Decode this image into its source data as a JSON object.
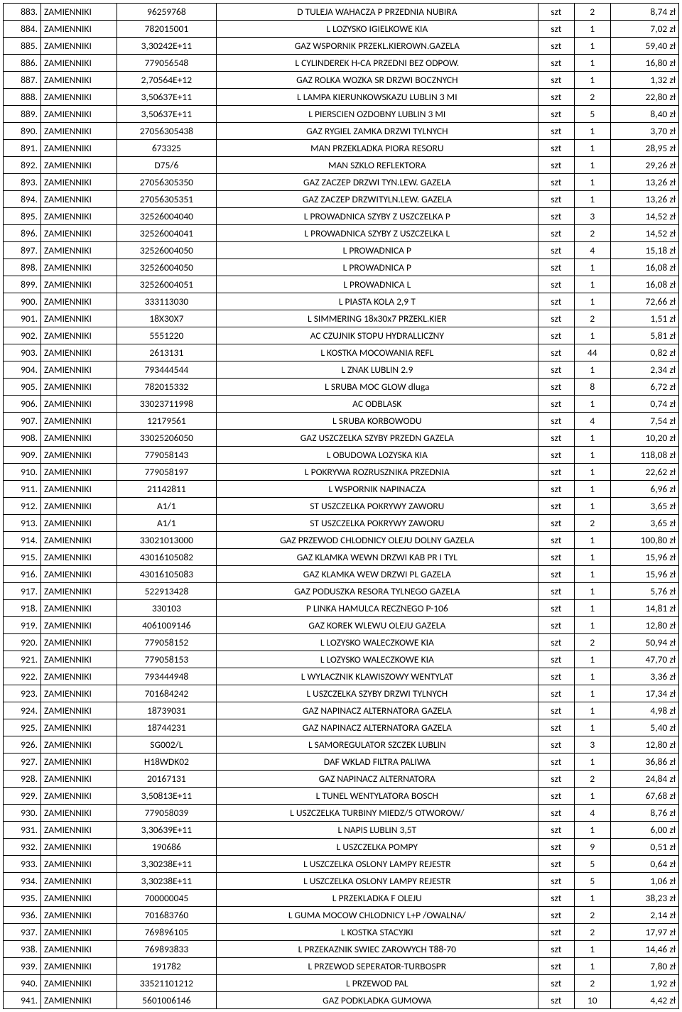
{
  "table": {
    "columns": [
      {
        "key": "lp",
        "class": "c0"
      },
      {
        "key": "cat",
        "class": "c1"
      },
      {
        "key": "code",
        "class": "c2"
      },
      {
        "key": "desc",
        "class": "c3"
      },
      {
        "key": "unit",
        "class": "c4"
      },
      {
        "key": "qty",
        "class": "c5"
      },
      {
        "key": "price",
        "class": "c6"
      }
    ],
    "rows": [
      [
        "883.",
        "ZAMIENNIKI",
        "96259768",
        "D TULEJA WAHACZA P PRZEDNIA NUBIRA",
        "szt",
        "2",
        "8,74 zł"
      ],
      [
        "884.",
        "ZAMIENNIKI",
        "782015001",
        "L LOZYSKO IGIELKOWE KIA",
        "szt",
        "1",
        "7,02 zł"
      ],
      [
        "885.",
        "ZAMIENNIKI",
        "3,30242E+11",
        "GAZ WSPORNIK PRZEKL.KIEROWN.GAZELA",
        "szt",
        "1",
        "59,40 zł"
      ],
      [
        "886.",
        "ZAMIENNIKI",
        "779056548",
        "L CYLINDEREK H-CA PRZEDNI BEZ ODPOW.",
        "szt",
        "1",
        "16,80 zł"
      ],
      [
        "887.",
        "ZAMIENNIKI",
        "2,70564E+12",
        "GAZ ROLKA WOZKA SR DRZWI BOCZNYCH",
        "szt",
        "1",
        "1,32 zł"
      ],
      [
        "888.",
        "ZAMIENNIKI",
        "3,50637E+11",
        "L LAMPA KIERUNKOWSKAZU LUBLIN 3 MI",
        "szt",
        "2",
        "22,80 zł"
      ],
      [
        "889.",
        "ZAMIENNIKI",
        "3,50637E+11",
        "L PIERSCIEN OZDOBNY LUBLIN 3 MI",
        "szt",
        "5",
        "8,40 zł"
      ],
      [
        "890.",
        "ZAMIENNIKI",
        "27056305438",
        "GAZ RYGIEL ZAMKA DRZWI TYLNYCH",
        "szt",
        "1",
        "3,70 zł"
      ],
      [
        "891.",
        "ZAMIENNIKI",
        "673325",
        "MAN PRZEKLADKA PIORA RESORU",
        "szt",
        "1",
        "28,95 zł"
      ],
      [
        "892.",
        "ZAMIENNIKI",
        "D75/6",
        "MAN SZKLO REFLEKTORA",
        "szt",
        "1",
        "29,26 zł"
      ],
      [
        "893.",
        "ZAMIENNIKI",
        "27056305350",
        "GAZ ZACZEP DRZWI TYN.LEW. GAZELA",
        "szt",
        "1",
        "13,26 zł"
      ],
      [
        "894.",
        "ZAMIENNIKI",
        "27056305351",
        "GAZ ZACZEP DRZWITYLN.LEW. GAZELA",
        "szt",
        "1",
        "13,26 zł"
      ],
      [
        "895.",
        "ZAMIENNIKI",
        "32526004040",
        "L PROWADNICA SZYBY Z USZCZELKA P",
        "szt",
        "3",
        "14,52 zł"
      ],
      [
        "896.",
        "ZAMIENNIKI",
        "32526004041",
        "L PROWADNICA SZYBY Z USZCZELKA L",
        "szt",
        "2",
        "14,52 zł"
      ],
      [
        "897.",
        "ZAMIENNIKI",
        "32526004050",
        "L PROWADNICA P",
        "szt",
        "4",
        "15,18 zł"
      ],
      [
        "898.",
        "ZAMIENNIKI",
        "32526004050",
        "L PROWADNICA P",
        "szt",
        "1",
        "16,08 zł"
      ],
      [
        "899.",
        "ZAMIENNIKI",
        "32526004051",
        "L PROWADNICA L",
        "szt",
        "1",
        "16,08 zł"
      ],
      [
        "900.",
        "ZAMIENNIKI",
        "333113030",
        "L PIASTA KOLA 2,9 T",
        "szt",
        "1",
        "72,66 zł"
      ],
      [
        "901.",
        "ZAMIENNIKI",
        "18X30X7",
        "L SIMMERING 18x30x7 PRZEKL.KIER",
        "szt",
        "2",
        "1,51 zł"
      ],
      [
        "902.",
        "ZAMIENNIKI",
        "5551220",
        "AC CZUJNIK STOPU HYDRALLICZNY",
        "szt",
        "1",
        "5,81 zł"
      ],
      [
        "903.",
        "ZAMIENNIKI",
        "2613131",
        "L KOSTKA MOCOWANIA REFL",
        "szt",
        "44",
        "0,82 zł"
      ],
      [
        "904.",
        "ZAMIENNIKI",
        "793444544",
        "L ZNAK LUBLIN 2.9",
        "szt",
        "1",
        "2,34 zł"
      ],
      [
        "905.",
        "ZAMIENNIKI",
        "782015332",
        "L SRUBA MOC GLOW  dluga",
        "szt",
        "8",
        "6,72 zł"
      ],
      [
        "906.",
        "ZAMIENNIKI",
        "33023711998",
        "AC ODBLASK",
        "szt",
        "1",
        "0,74 zł"
      ],
      [
        "907.",
        "ZAMIENNIKI",
        "12179561",
        "L SRUBA KORBOWODU",
        "szt",
        "4",
        "7,54 zł"
      ],
      [
        "908.",
        "ZAMIENNIKI",
        "33025206050",
        "GAZ USZCZELKA SZYBY PRZEDN GAZELA",
        "szt",
        "1",
        "10,20 zł"
      ],
      [
        "909.",
        "ZAMIENNIKI",
        "779058143",
        "L OBUDOWA LOZYSKA KIA",
        "szt",
        "1",
        "118,08 zł"
      ],
      [
        "910.",
        "ZAMIENNIKI",
        "779058197",
        "L POKRYWA ROZRUSZNIKA PRZEDNIA",
        "szt",
        "1",
        "22,62 zł"
      ],
      [
        "911.",
        "ZAMIENNIKI",
        "21142811",
        "L WSPORNIK NAPINACZA",
        "szt",
        "1",
        "6,96 zł"
      ],
      [
        "912.",
        "ZAMIENNIKI",
        "A1/1",
        "ST USZCZELKA POKRYWY ZAWORU",
        "szt",
        "1",
        "3,65 zł"
      ],
      [
        "913.",
        "ZAMIENNIKI",
        "A1/1",
        "ST USZCZELKA POKRYWY ZAWORU",
        "szt",
        "2",
        "3,65 zł"
      ],
      [
        "914.",
        "ZAMIENNIKI",
        "33021013000",
        "GAZ PRZEWOD CHLODNICY OLEJU DOLNY GAZELA",
        "szt",
        "1",
        "100,80 zł"
      ],
      [
        "915.",
        "ZAMIENNIKI",
        "43016105082",
        "GAZ KLAMKA WEWN DRZWI KAB PR I TYL",
        "szt",
        "1",
        "15,96 zł"
      ],
      [
        "916.",
        "ZAMIENNIKI",
        "43016105083",
        "GAZ KLAMKA WEW DRZWI PL GAZELA",
        "szt",
        "1",
        "15,96 zł"
      ],
      [
        "917.",
        "ZAMIENNIKI",
        "522913428",
        "GAZ PODUSZKA RESORA TYLNEGO GAZELA",
        "szt",
        "1",
        "5,76 zł"
      ],
      [
        "918.",
        "ZAMIENNIKI",
        "330103",
        "P LINKA HAMULCA RECZNEGO P-106",
        "szt",
        "1",
        "14,81 zł"
      ],
      [
        "919.",
        "ZAMIENNIKI",
        "4061009146",
        "GAZ KOREK WLEWU OLEJU GAZELA",
        "szt",
        "1",
        "12,80 zł"
      ],
      [
        "920.",
        "ZAMIENNIKI",
        "779058152",
        "L LOZYSKO WALECZKOWE KIA",
        "szt",
        "2",
        "50,94 zł"
      ],
      [
        "921.",
        "ZAMIENNIKI",
        "779058153",
        "L LOZYSKO WALECZKOWE KIA",
        "szt",
        "1",
        "47,70 zł"
      ],
      [
        "922.",
        "ZAMIENNIKI",
        "793444948",
        "L WYLACZNIK KLAWISZOWY WENTYLAT",
        "szt",
        "1",
        "3,36 zł"
      ],
      [
        "923.",
        "ZAMIENNIKI",
        "701684242",
        "L USZCZELKA SZYBY DRZWI TYLNYCH",
        "szt",
        "1",
        "17,34 zł"
      ],
      [
        "924.",
        "ZAMIENNIKI",
        "18739031",
        "GAZ NAPINACZ ALTERNATORA GAZELA",
        "szt",
        "1",
        "4,98 zł"
      ],
      [
        "925.",
        "ZAMIENNIKI",
        "18744231",
        "GAZ NAPINACZ ALTERNATORA GAZELA",
        "szt",
        "1",
        "5,40 zł"
      ],
      [
        "926.",
        "ZAMIENNIKI",
        "SG002/L",
        "L SAMOREGULATOR SZCZEK LUBLIN",
        "szt",
        "3",
        "12,80 zł"
      ],
      [
        "927.",
        "ZAMIENNIKI",
        "H18WDK02",
        "DAF WKLAD FILTRA PALIWA",
        "szt",
        "1",
        "36,86 zł"
      ],
      [
        "928.",
        "ZAMIENNIKI",
        "20167131",
        "GAZ NAPINACZ ALTERNATORA",
        "szt",
        "2",
        "24,84 zł"
      ],
      [
        "929.",
        "ZAMIENNIKI",
        "3,50813E+11",
        "L TUNEL WENTYLATORA BOSCH",
        "szt",
        "1",
        "67,68 zł"
      ],
      [
        "930.",
        "ZAMIENNIKI",
        "779058039",
        "L USZCZELKA TURBINY MIEDZ/5 OTWOROW/",
        "szt",
        "4",
        "8,76 zł"
      ],
      [
        "931.",
        "ZAMIENNIKI",
        "3,30639E+11",
        "L NAPIS LUBLIN 3,5T",
        "szt",
        "1",
        "6,00 zł"
      ],
      [
        "932.",
        "ZAMIENNIKI",
        "190686",
        "L USZCZELKA POMPY",
        "szt",
        "9",
        "0,51 zł"
      ],
      [
        "933.",
        "ZAMIENNIKI",
        "3,30238E+11",
        "L USZCZELKA OSLONY LAMPY REJESTR",
        "szt",
        "5",
        "0,64 zł"
      ],
      [
        "934.",
        "ZAMIENNIKI",
        "3,30238E+11",
        "L USZCZELKA OSLONY LAMPY REJESTR",
        "szt",
        "5",
        "1,06 zł"
      ],
      [
        "935.",
        "ZAMIENNIKI",
        "700000045",
        "L PRZEKLADKA F OLEJU",
        "szt",
        "1",
        "38,23 zł"
      ],
      [
        "936.",
        "ZAMIENNIKI",
        "701683760",
        "L GUMA MOCOW CHLODNICY L+P /OWALNA/",
        "szt",
        "2",
        "2,14 zł"
      ],
      [
        "937.",
        "ZAMIENNIKI",
        "769896105",
        "L KOSTKA STACYJKI",
        "szt",
        "2",
        "17,97 zł"
      ],
      [
        "938.",
        "ZAMIENNIKI",
        "769893833",
        "L PRZEKAZNIK SWIEC ZAROWYCH T88-70",
        "szt",
        "1",
        "14,46 zł"
      ],
      [
        "939.",
        "ZAMIENNIKI",
        "191782",
        "L PRZEWOD SEPERATOR-TURBOSPR",
        "szt",
        "1",
        "7,80 zł"
      ],
      [
        "940.",
        "ZAMIENNIKI",
        "33521101212",
        "L PRZEWOD PAL",
        "szt",
        "2",
        "1,92 zł"
      ],
      [
        "941.",
        "ZAMIENNIKI",
        "5601006146",
        "GAZ PODKLADKA GUMOWA",
        "szt",
        "10",
        "4,42 zł"
      ]
    ]
  }
}
